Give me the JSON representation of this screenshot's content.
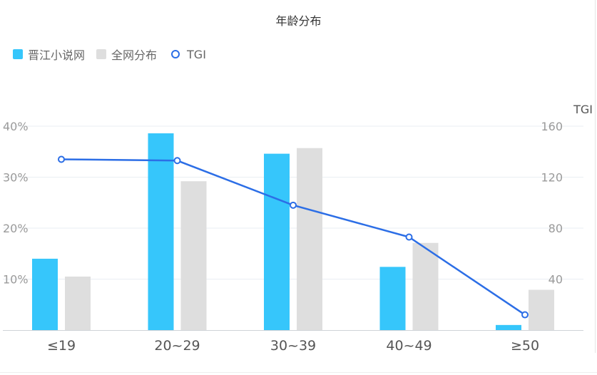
{
  "title": "年龄分布",
  "legend": [
    {
      "label": "晋江小说网",
      "color": "#36c6fb",
      "kind": "bar"
    },
    {
      "label": "全网分布",
      "color": "#dedede",
      "kind": "bar"
    },
    {
      "label": "TGI",
      "color": "#2c6ee6",
      "kind": "line"
    }
  ],
  "chart_data": {
    "type": "bar",
    "categories": [
      "≤19",
      "20~29",
      "30~39",
      "40~49",
      "≥50"
    ],
    "series": [
      {
        "name": "晋江小说网",
        "type": "bar",
        "axis": "left",
        "color": "#36c6fb",
        "values": [
          14,
          38.6,
          34.6,
          12.4,
          1.0
        ]
      },
      {
        "name": "全网分布",
        "type": "bar",
        "axis": "left",
        "color": "#dedede",
        "values": [
          10.5,
          29.2,
          35.7,
          17.1,
          7.9
        ]
      },
      {
        "name": "TGI",
        "type": "line",
        "axis": "right",
        "color": "#2c6ee6",
        "values": [
          134,
          133,
          98,
          73,
          12
        ]
      }
    ],
    "y_left": {
      "label": "",
      "ylim": [
        0,
        40
      ],
      "ticks": [
        "10%",
        "20%",
        "30%",
        "40%"
      ],
      "tick_values": [
        10,
        20,
        30,
        40
      ]
    },
    "y_right": {
      "label": "TGI",
      "ylim": [
        0,
        160
      ],
      "ticks": [
        "40",
        "80",
        "120",
        "160"
      ],
      "tick_values": [
        40,
        80,
        120,
        160
      ]
    },
    "grid": true,
    "legend_position": "top-left"
  }
}
